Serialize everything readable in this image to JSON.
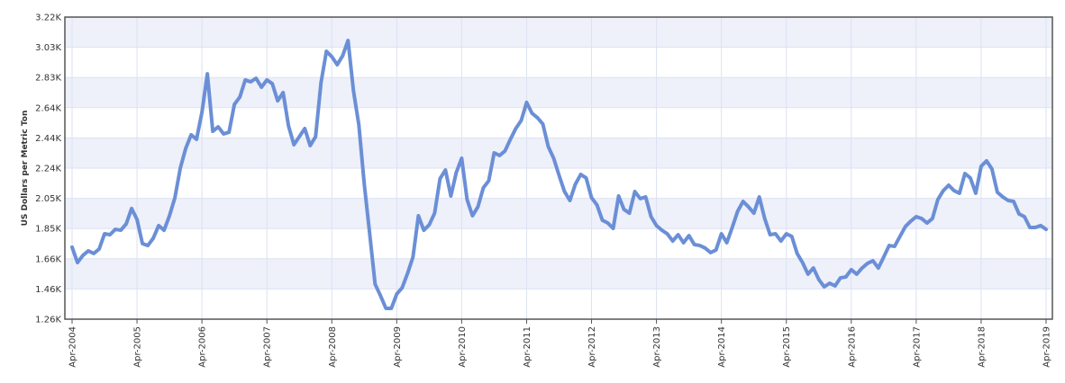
{
  "chart_data": {
    "type": "line",
    "y_label": "US Dollars per Metric Ton",
    "color": "#6b8fd6",
    "grid": true,
    "ylim": [
      1260,
      3220
    ],
    "yticks": [
      {
        "value": 1260,
        "label": "1.26K"
      },
      {
        "value": 1456,
        "label": "1.46K"
      },
      {
        "value": 1652,
        "label": "1.66K"
      },
      {
        "value": 1848,
        "label": "1.85K"
      },
      {
        "value": 2044,
        "label": "2.05K"
      },
      {
        "value": 2240,
        "label": "2.24K"
      },
      {
        "value": 2436,
        "label": "2.44K"
      },
      {
        "value": 2632,
        "label": "2.64K"
      },
      {
        "value": 2828,
        "label": "2.83K"
      },
      {
        "value": 3024,
        "label": "3.03K"
      },
      {
        "value": 3220,
        "label": "3.22K"
      }
    ],
    "categories": [
      "Apr-2004",
      null,
      null,
      null,
      null,
      null,
      null,
      null,
      null,
      null,
      null,
      null,
      "Apr-2005",
      null,
      null,
      null,
      null,
      null,
      null,
      null,
      null,
      null,
      null,
      null,
      "Apr-2006",
      null,
      null,
      null,
      null,
      null,
      null,
      null,
      null,
      null,
      null,
      null,
      "Apr-2007",
      null,
      null,
      null,
      null,
      null,
      null,
      null,
      null,
      null,
      null,
      null,
      "Apr-2008",
      null,
      null,
      null,
      null,
      null,
      null,
      null,
      null,
      null,
      null,
      null,
      "Apr-2009",
      null,
      null,
      null,
      null,
      null,
      null,
      null,
      null,
      null,
      null,
      null,
      "Apr-2010",
      null,
      null,
      null,
      null,
      null,
      null,
      null,
      null,
      null,
      null,
      null,
      "Apr-2011",
      null,
      null,
      null,
      null,
      null,
      null,
      null,
      null,
      null,
      null,
      null,
      "Apr-2012",
      null,
      null,
      null,
      null,
      null,
      null,
      null,
      null,
      null,
      null,
      null,
      "Apr-2013",
      null,
      null,
      null,
      null,
      null,
      null,
      null,
      null,
      null,
      null,
      null,
      "Apr-2014",
      null,
      null,
      null,
      null,
      null,
      null,
      null,
      null,
      null,
      null,
      null,
      "Apr-2015",
      null,
      null,
      null,
      null,
      null,
      null,
      null,
      null,
      null,
      null,
      null,
      "Apr-2016",
      null,
      null,
      null,
      null,
      null,
      null,
      null,
      null,
      null,
      null,
      null,
      "Apr-2017",
      null,
      null,
      null,
      null,
      null,
      null,
      null,
      null,
      null,
      null,
      null,
      "Apr-2018",
      null,
      null,
      null,
      null,
      null,
      null,
      null,
      null,
      null,
      null,
      null,
      "Apr-2019"
    ],
    "values": [
      1727,
      1627,
      1674,
      1703,
      1686,
      1715,
      1814,
      1808,
      1843,
      1837,
      1878,
      1978,
      1907,
      1750,
      1738,
      1785,
      1867,
      1837,
      1931,
      2048,
      2240,
      2368,
      2456,
      2427,
      2602,
      2852,
      2479,
      2508,
      2462,
      2473,
      2654,
      2701,
      2812,
      2800,
      2823,
      2765,
      2812,
      2788,
      2677,
      2730,
      2514,
      2392,
      2444,
      2497,
      2386,
      2444,
      2794,
      2998,
      2963,
      2911,
      2969,
      3068,
      2742,
      2520,
      2135,
      1814,
      1487,
      1412,
      1330,
      1330,
      1423,
      1464,
      1557,
      1663,
      1931,
      1837,
      1872,
      1948,
      2172,
      2228,
      2059,
      2211,
      2304,
      2036,
      1931,
      1989,
      2112,
      2158,
      2339,
      2322,
      2351,
      2427,
      2497,
      2549,
      2666,
      2596,
      2567,
      2526,
      2380,
      2304,
      2193,
      2088,
      2030,
      2135,
      2199,
      2176,
      2048,
      2001,
      1902,
      1884,
      1849,
      2059,
      1972,
      1948,
      2088,
      2042,
      2053,
      1925,
      1867,
      1837,
      1814,
      1767,
      1808,
      1756,
      1802,
      1744,
      1738,
      1721,
      1692,
      1709,
      1814,
      1756,
      1855,
      1960,
      2024,
      1989,
      1948,
      2053,
      1913,
      1808,
      1814,
      1767,
      1814,
      1797,
      1686,
      1627,
      1552,
      1592,
      1517,
      1470,
      1493,
      1476,
      1528,
      1534,
      1581,
      1552,
      1592,
      1622,
      1639,
      1592,
      1663,
      1738,
      1732,
      1797,
      1861,
      1896,
      1925,
      1913,
      1884,
      1913,
      2036,
      2094,
      2129,
      2094,
      2077,
      2205,
      2176,
      2077,
      2252,
      2287,
      2234,
      2083,
      2053,
      2030,
      2024,
      1943,
      1925,
      1855,
      1855,
      1867,
      1843
    ]
  }
}
